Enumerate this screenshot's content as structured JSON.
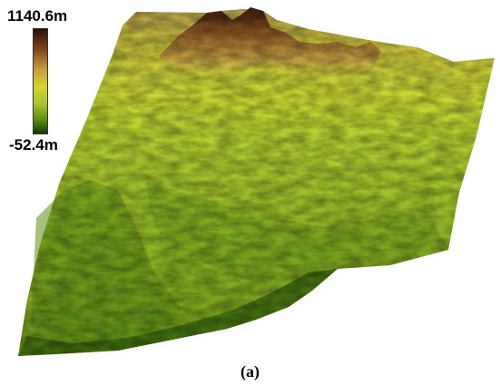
{
  "legend": {
    "max_label": "1140.6m",
    "min_label": "-52.4m",
    "colors": [
      "#2b0d06",
      "#7a3f17",
      "#c59a3c",
      "#d5d430",
      "#a8c42a",
      "#5a8f12",
      "#123806"
    ]
  },
  "caption": "(a)"
}
